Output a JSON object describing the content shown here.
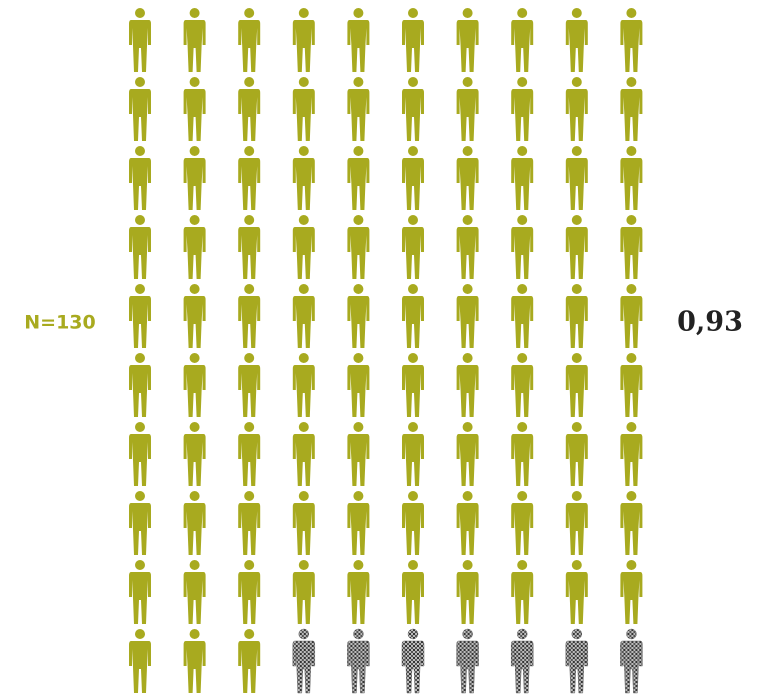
{
  "chart_data": {
    "type": "pictogram",
    "annotation": "N=130",
    "value": 0.93,
    "value_label": "0,93",
    "colors": [
      "#a8aa1f",
      "#6a6a6a"
    ]
  }
}
